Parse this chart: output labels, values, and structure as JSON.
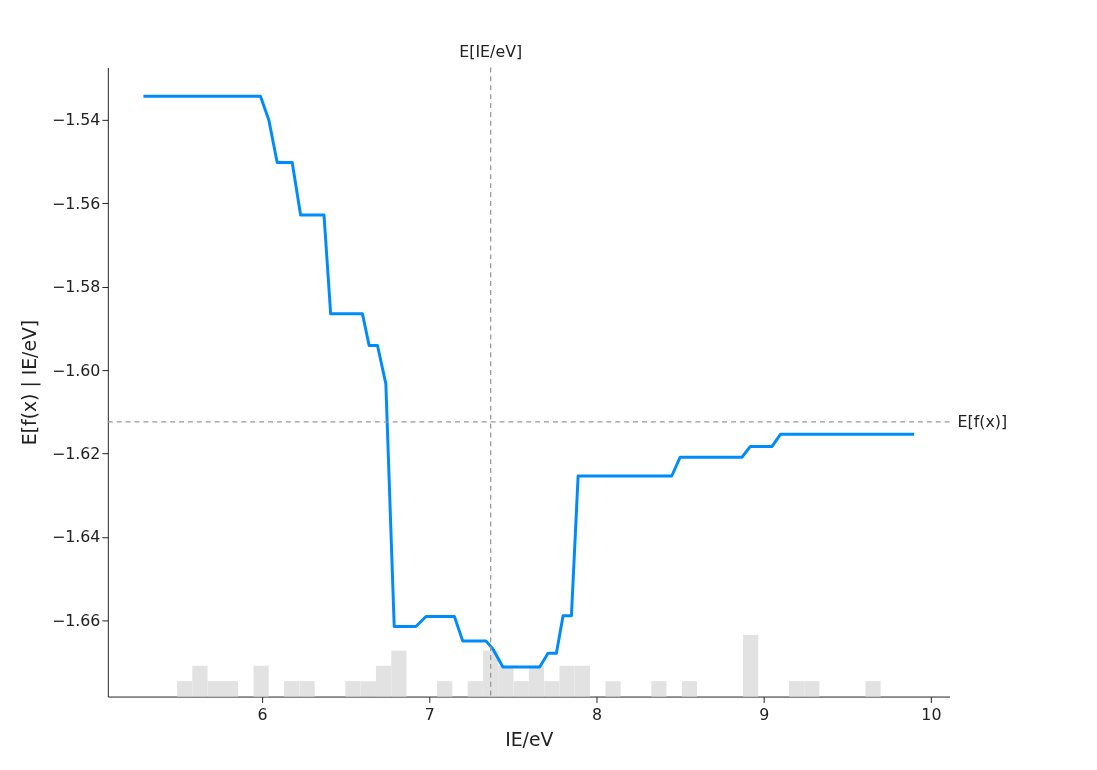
{
  "chart_data": {
    "type": "line",
    "xlabel": "IE/eV",
    "ylabel": "E[f(x) | IE/eV]",
    "xlim": [
      5.077,
      10.112
    ],
    "xticks": [
      6,
      7,
      8,
      9,
      10
    ],
    "ylim": [
      -1.6783,
      -1.5274
    ],
    "yticks": [
      -1.54,
      -1.56,
      -1.58,
      {
        "value": -1.6,
        "label": "−1.60"
      },
      -1.62,
      -1.64,
      -1.66
    ],
    "grid": false,
    "line_style": "solid",
    "marker": "none",
    "series": [
      {
        "color": "#008bfb",
        "x": [
          5.29,
          5.99,
          6.04,
          6.09,
          6.18,
          6.23,
          6.37,
          6.41,
          6.6,
          6.64,
          6.69,
          6.74,
          6.79,
          6.92,
          6.98,
          7.15,
          7.2,
          7.34,
          7.38,
          7.44,
          7.66,
          7.71,
          7.76,
          7.8,
          7.85,
          7.89,
          8.45,
          8.5,
          8.87,
          8.92,
          9.05,
          9.1,
          9.9
        ],
        "values": [
          -1.5343,
          -1.5343,
          -1.54,
          -1.5502,
          -1.5502,
          -1.5628,
          -1.5628,
          -1.5865,
          -1.5865,
          -1.5941,
          -1.5941,
          -1.6033,
          -1.6615,
          -1.6615,
          -1.6591,
          -1.6591,
          -1.665,
          -1.665,
          -1.6669,
          -1.6712,
          -1.6712,
          -1.6679,
          -1.6679,
          -1.6589,
          -1.6589,
          -1.6254,
          -1.6254,
          -1.6209,
          -1.6209,
          -1.6183,
          -1.6183,
          -1.6154,
          -1.6154
        ]
      },
      {
        "type": "bar",
        "color": "#e2e2e2",
        "x": [
          5.537,
          5.628,
          5.72,
          5.811,
          5.994,
          6.177,
          6.269,
          6.543,
          6.635,
          6.726,
          6.818,
          7.092,
          7.275,
          7.367,
          7.458,
          7.55,
          7.641,
          7.733,
          7.824,
          7.916,
          8.099,
          8.373,
          8.556,
          8.922,
          9.197,
          9.288,
          9.654
        ],
        "base": [
          -1.6783,
          -1.6783,
          -1.6783,
          -1.6783,
          -1.6783,
          -1.6783,
          -1.6783,
          -1.6783,
          -1.6783,
          -1.6783,
          -1.6783,
          -1.6783,
          -1.6783,
          -1.6783,
          -1.6783,
          -1.6783,
          -1.6783,
          -1.6783,
          -1.6783,
          -1.6783,
          -1.6783,
          -1.6783,
          -1.6783,
          -1.6783,
          -1.6783,
          -1.6783,
          -1.6783
        ],
        "values": [
          0.0037,
          0.0074,
          0.0037,
          0.0037,
          0.0074,
          0.0037,
          0.0037,
          0.0037,
          0.0037,
          0.0074,
          0.011,
          0.0037,
          0.0037,
          0.011,
          0.0074,
          0.0037,
          0.0074,
          0.0037,
          0.0074,
          0.0074,
          0.0037,
          0.0037,
          0.0037,
          0.0148,
          0.0037,
          0.0037,
          0.0037
        ]
      }
    ],
    "ref_lines": [
      {
        "axis": "x",
        "value": 7.367,
        "label": "E[IE/eV]",
        "color": "#999999",
        "line_style": "dashed"
      },
      {
        "axis": "y",
        "value": -1.6124,
        "label": "E[f(x)]",
        "color": "#999999",
        "line_style": "dashed"
      }
    ]
  }
}
